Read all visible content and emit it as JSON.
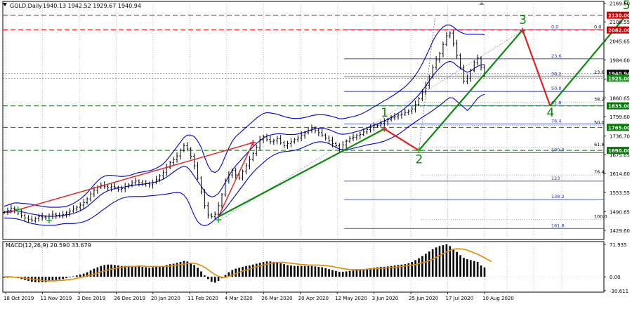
{
  "header": {
    "symbol_label": "GOLD,Daily",
    "ohlc_label": "1940.13 1942.52 1929.67 1940.94"
  },
  "colors": {
    "background": "#ffffff",
    "grid": "#9a9a9a",
    "bollinger": "#0000cc",
    "macd_hist": "#000000",
    "macd_signal": "#e68a00",
    "wave_line": "#0a8a0a",
    "correction_line": "#e02020",
    "resistance_line": "#cc0000",
    "support_line": "#007a00",
    "fib_line": "#2233aa",
    "price_badge": "#000000",
    "ask_badge": "#0a8a0a",
    "resistance_badge": "#cc0000",
    "support_badge": "#007a00"
  },
  "chart_data": [
    {
      "type": "line",
      "title": "GOLD,Daily",
      "x_ticks": [
        "18 Oct 2019",
        "11 Nov 2019",
        "3 Dec 2019",
        "26 Dec 2019",
        "20 Jan 2020",
        "11 Feb 2020",
        "4 Mar 2020",
        "26 Mar 2020",
        "20 Apr 2020",
        "12 May 2020",
        "3 Jun 2020",
        "25 Jun 2020",
        "17 Jul 2020",
        "10 Aug 2020"
      ],
      "y_ticks": [
        2169.6,
        2108.55,
        2045.65,
        1984.6,
        1921.7,
        1860.65,
        1799.6,
        1736.7,
        1675.65,
        1614.6,
        1553.55,
        1490.65,
        1429.6
      ],
      "ylim": [
        1400,
        2175
      ],
      "price_badges": [
        {
          "label": "2130.00",
          "value": 2130.0,
          "kind": "resistance"
        },
        {
          "label": "2082.00",
          "value": 2082.0,
          "kind": "resistance"
        },
        {
          "label": "1940.94",
          "value": 1940.94,
          "kind": "price"
        },
        {
          "label": "1925.00",
          "value": 1925.0,
          "kind": "ask"
        },
        {
          "label": "1835.00",
          "value": 1835.0,
          "kind": "support"
        },
        {
          "label": "1765.00",
          "value": 1765.0,
          "kind": "support"
        },
        {
          "label": "1690.00",
          "value": 1690.0,
          "kind": "support"
        }
      ],
      "series": [
        {
          "values": [
            1488,
            1495,
            1502,
            1497,
            1486,
            1478,
            1470,
            1466,
            1462,
            1468,
            1475,
            1473,
            1470,
            1476,
            1482,
            1479,
            1476,
            1481,
            1487,
            1493,
            1499,
            1505,
            1512,
            1520,
            1532,
            1548,
            1560,
            1570,
            1577,
            1573,
            1568,
            1572,
            1569,
            1563,
            1566,
            1572,
            1578,
            1585,
            1590,
            1585,
            1580,
            1582,
            1578,
            1586,
            1595,
            1607,
            1618,
            1635,
            1650,
            1660,
            1672,
            1690,
            1705,
            1695,
            1671,
            1640,
            1600,
            1555,
            1510,
            1480,
            1474,
            1482,
            1510,
            1545,
            1590,
            1610,
            1625,
            1610,
            1600,
            1622,
            1640,
            1660,
            1680,
            1700,
            1725,
            1735,
            1725,
            1718,
            1722,
            1728,
            1715,
            1705,
            1712,
            1718,
            1725,
            1730,
            1740,
            1748,
            1755,
            1762,
            1755,
            1748,
            1740,
            1730,
            1722,
            1712,
            1705,
            1692,
            1708,
            1720,
            1728,
            1733,
            1738,
            1742,
            1750,
            1758,
            1765,
            1770,
            1772,
            1778,
            1783,
            1790,
            1796,
            1800,
            1805,
            1808,
            1813,
            1818,
            1825,
            1840,
            1858,
            1880,
            1902,
            1930,
            1960,
            1985,
            2005,
            2035,
            2063,
            2072,
            2038,
            2000,
            1960,
            1915,
            1925,
            1950,
            1975,
            1990,
            1960,
            1940.94
          ]
        }
      ],
      "bands": {
        "upper": [
          1508,
          1512,
          1516,
          1519,
          1519,
          1518,
          1517,
          1516,
          1514,
          1512,
          1510,
          1508,
          1506,
          1505,
          1505,
          1505,
          1505,
          1506,
          1508,
          1512,
          1517,
          1524,
          1532,
          1541,
          1552,
          1565,
          1578,
          1590,
          1600,
          1606,
          1609,
          1609,
          1608,
          1606,
          1605,
          1606,
          1608,
          1611,
          1615,
          1618,
          1620,
          1622,
          1624,
          1627,
          1632,
          1638,
          1646,
          1658,
          1672,
          1687,
          1702,
          1717,
          1732,
          1740,
          1740,
          1735,
          1720,
          1700,
          1668,
          1640,
          1622,
          1618,
          1625,
          1645,
          1672,
          1698,
          1720,
          1735,
          1745,
          1755,
          1765,
          1775,
          1785,
          1795,
          1803,
          1810,
          1813,
          1812,
          1810,
          1808,
          1804,
          1800,
          1797,
          1795,
          1794,
          1794,
          1795,
          1797,
          1800,
          1803,
          1805,
          1806,
          1806,
          1805,
          1803,
          1800,
          1797,
          1793,
          1793,
          1795,
          1798,
          1800,
          1803,
          1807,
          1812,
          1818,
          1825,
          1832,
          1838,
          1845,
          1852,
          1858,
          1865,
          1872,
          1880,
          1888,
          1897,
          1908,
          1920,
          1935,
          1952,
          1972,
          1995,
          2020,
          2045,
          2065,
          2080,
          2092,
          2098,
          2098,
          2092,
          2082,
          2075,
          2070,
          2068,
          2068,
          2068,
          2068,
          2068,
          2066
        ],
        "lower": [
          1470,
          1470,
          1469,
          1468,
          1466,
          1463,
          1459,
          1455,
          1452,
          1450,
          1448,
          1447,
          1446,
          1446,
          1446,
          1447,
          1449,
          1451,
          1452,
          1452,
          1452,
          1453,
          1455,
          1458,
          1462,
          1468,
          1475,
          1483,
          1492,
          1500,
          1508,
          1516,
          1523,
          1529,
          1534,
          1537,
          1539,
          1540,
          1540,
          1540,
          1540,
          1541,
          1542,
          1543,
          1544,
          1545,
          1546,
          1548,
          1550,
          1552,
          1553,
          1552,
          1545,
          1530,
          1505,
          1478,
          1458,
          1448,
          1445,
          1448,
          1455,
          1465,
          1475,
          1488,
          1500,
          1515,
          1530,
          1545,
          1560,
          1575,
          1590,
          1605,
          1618,
          1630,
          1640,
          1650,
          1660,
          1668,
          1675,
          1680,
          1684,
          1686,
          1687,
          1688,
          1690,
          1693,
          1697,
          1702,
          1707,
          1712,
          1716,
          1718,
          1718,
          1716,
          1712,
          1706,
          1700,
          1694,
          1692,
          1692,
          1694,
          1697,
          1700,
          1702,
          1705,
          1708,
          1710,
          1712,
          1714,
          1717,
          1720,
          1725,
          1730,
          1736,
          1742,
          1750,
          1758,
          1767,
          1775,
          1783,
          1790,
          1798,
          1805,
          1812,
          1820,
          1828,
          1836,
          1845,
          1855,
          1862,
          1860,
          1850,
          1840,
          1830,
          1820,
          1830,
          1845,
          1860,
          1868,
          1873
        ]
      },
      "fibonacci": {
        "grid_a": {
          "levels": [
            {
              "label": "0.0",
              "value": 2082
            },
            {
              "label": "23.6",
              "value": 1988
            },
            {
              "label": "38.2",
              "value": 1929
            },
            {
              "label": "50.0",
              "value": 1882
            },
            {
              "label": "61.8",
              "value": 1835
            },
            {
              "label": "76.4",
              "value": 1776
            },
            {
              "label": "100.0",
              "value": 1682
            },
            {
              "label": "123",
              "value": 1590
            },
            {
              "label": "138.2",
              "value": 1530
            },
            {
              "label": "161.8",
              "value": 1436
            }
          ]
        },
        "grid_b": {
          "levels": [
            {
              "label": "0.0",
              "value": 2082
            },
            {
              "label": "23.6",
              "value": 1935
            },
            {
              "label": "38.2",
              "value": 1847
            },
            {
              "label": "50.0",
              "value": 1772
            },
            {
              "label": "61.8",
              "value": 1700
            },
            {
              "label": "76.4",
              "value": 1610
            },
            {
              "label": "100.0",
              "value": 1465
            }
          ]
        }
      },
      "wave_labels": [
        {
          "label": "1",
          "x": 110,
          "value": 1800
        },
        {
          "label": "2",
          "x": 120,
          "value": 1648
        },
        {
          "label": "3",
          "x": 150,
          "value": 2102
        },
        {
          "label": "4",
          "x": 158,
          "value": 1800
        },
        {
          "label": "5",
          "x": 180,
          "value": 2150
        }
      ],
      "impulse_wave": [
        [
          62,
          1474
        ],
        [
          110,
          1760
        ],
        [
          120,
          1690
        ],
        [
          150,
          2082
        ],
        [
          158,
          1835
        ],
        [
          180,
          2130
        ]
      ],
      "correction_lines": [
        [
          [
            1,
            1487
          ],
          [
            72,
            1715
          ]
        ],
        [
          [
            72,
            1715
          ],
          [
            62,
            1474
          ]
        ],
        [
          [
            110,
            1760
          ],
          [
            120,
            1690
          ]
        ],
        [
          [
            150,
            2082
          ],
          [
            158,
            1835
          ]
        ]
      ],
      "crosses": [
        {
          "x": 4,
          "value": 1498,
          "color": "green"
        },
        {
          "x": 13,
          "value": 1462,
          "color": "green"
        },
        {
          "x": 62,
          "value": 1464,
          "color": "green"
        },
        {
          "x": 72,
          "value": 1715,
          "color": "red"
        },
        {
          "x": 110,
          "value": 1760,
          "color": "red"
        },
        {
          "x": 120,
          "value": 1690,
          "color": "green"
        },
        {
          "x": 150,
          "value": 2080,
          "color": "red"
        }
      ]
    },
    {
      "type": "bar",
      "title": "MACD(12,26,9) 20.590 33.679",
      "y_ticks": [
        71.935,
        0.0,
        -30.611
      ],
      "ylim": [
        -34,
        78
      ],
      "series": [
        {
          "values": [
            -2,
            -2,
            -1,
            -1,
            -3,
            -5,
            -7,
            -9,
            -11,
            -12,
            -12,
            -12,
            -12,
            -10,
            -8,
            -7,
            -6,
            -5,
            -3,
            -1,
            1,
            3,
            5,
            7,
            10,
            14,
            18,
            21,
            24,
            26,
            27,
            27,
            26,
            25,
            24,
            24,
            24,
            24,
            24,
            23,
            22,
            21,
            20,
            21,
            22,
            23,
            24,
            26,
            28,
            29,
            31,
            33,
            35,
            34,
            31,
            26,
            20,
            12,
            3,
            -5,
            -11,
            -13,
            -9,
            -3,
            4,
            10,
            15,
            18,
            20,
            22,
            24,
            25,
            27,
            29,
            31,
            33,
            34,
            34,
            33,
            32,
            30,
            28,
            26,
            25,
            24,
            24,
            24,
            24,
            24,
            24,
            23,
            22,
            21,
            19,
            17,
            15,
            13,
            11,
            11,
            12,
            13,
            14,
            15,
            16,
            17,
            18,
            19,
            20,
            21,
            22,
            22,
            23,
            24,
            25,
            26,
            27,
            28,
            30,
            33,
            37,
            41,
            46,
            51,
            56,
            61,
            65,
            68,
            70,
            72,
            68,
            62,
            55,
            48,
            42,
            39,
            37,
            35,
            33,
            25,
            20.59
          ]
        },
        {
          "values": [
            0,
            0,
            0,
            -1,
            -1,
            -2,
            -3,
            -4,
            -5,
            -6,
            -7,
            -8,
            -9,
            -9,
            -9,
            -9,
            -8,
            -8,
            -7,
            -6,
            -5,
            -3,
            -2,
            0,
            2,
            4,
            6,
            8,
            11,
            13,
            15,
            17,
            18,
            20,
            21,
            22,
            23,
            23,
            23,
            24,
            24,
            23,
            23,
            23,
            23,
            23,
            23,
            23,
            24,
            25,
            26,
            27,
            28,
            29,
            30,
            30,
            28,
            25,
            21,
            16,
            10,
            5,
            1,
            -1,
            -1,
            1,
            4,
            7,
            10,
            13,
            15,
            17,
            20,
            22,
            24,
            26,
            28,
            29,
            31,
            32,
            32,
            32,
            31,
            30,
            29,
            28,
            27,
            27,
            26,
            26,
            26,
            26,
            25,
            25,
            24,
            23,
            21,
            20,
            18,
            17,
            16,
            16,
            16,
            16,
            16,
            17,
            17,
            18,
            18,
            19,
            19,
            20,
            20,
            21,
            22,
            23,
            24,
            25,
            26,
            27,
            29,
            31,
            33,
            36,
            39,
            43,
            47,
            51,
            55,
            58,
            61,
            62,
            62,
            61,
            59,
            56,
            53,
            50,
            46,
            42,
            38,
            33.679
          ]
        }
      ]
    }
  ]
}
